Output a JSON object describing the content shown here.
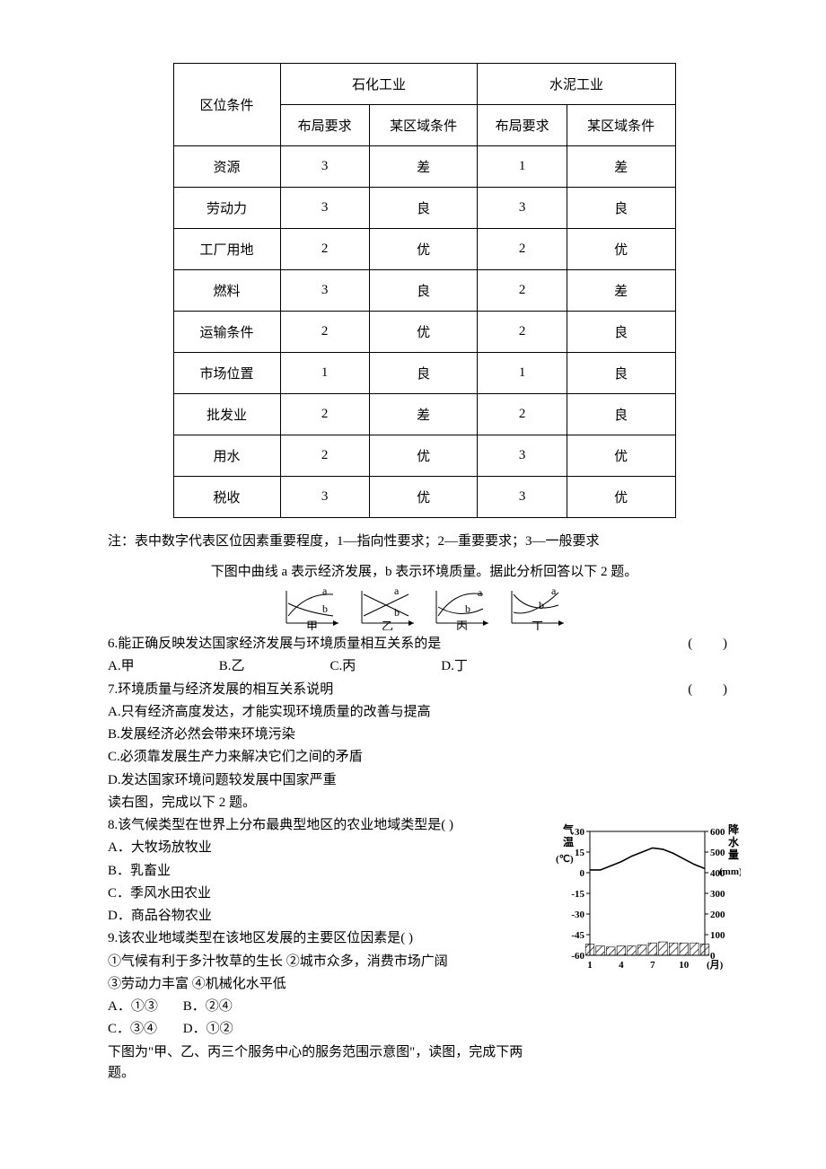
{
  "table": {
    "header": {
      "row_head": "区位条件",
      "group1": "石化工业",
      "group2": "水泥工业",
      "sub1": "布局要求",
      "sub2": "某区域条件",
      "sub3": "布局要求",
      "sub4": "某区域条件"
    },
    "rows": [
      {
        "label": "资源",
        "c1": "3",
        "c2": "差",
        "c3": "1",
        "c4": "差"
      },
      {
        "label": "劳动力",
        "c1": "3",
        "c2": "良",
        "c3": "3",
        "c4": "良"
      },
      {
        "label": "工厂用地",
        "c1": "2",
        "c2": "优",
        "c3": "2",
        "c4": "优"
      },
      {
        "label": "燃料",
        "c1": "3",
        "c2": "良",
        "c3": "2",
        "c4": "差"
      },
      {
        "label": "运输条件",
        "c1": "2",
        "c2": "优",
        "c3": "2",
        "c4": "良"
      },
      {
        "label": "市场位置",
        "c1": "1",
        "c2": "良",
        "c3": "1",
        "c4": "良"
      },
      {
        "label": "批发业",
        "c1": "2",
        "c2": "差",
        "c3": "2",
        "c4": "良"
      },
      {
        "label": "用水",
        "c1": "2",
        "c2": "优",
        "c3": "3",
        "c4": "优"
      },
      {
        "label": "税收",
        "c1": "3",
        "c2": "优",
        "c3": "3",
        "c4": "优"
      }
    ],
    "note": "注：表中数字代表区位因素重要程度，1—指向性要求；2—重要要求；3—一般要求"
  },
  "mini_chart_intro": "下图中曲线 a 表示经济发展，b 表示环境质量。据此分析回答以下 2 题。",
  "mini_labels": {
    "a": "a",
    "b": "b",
    "jia": "甲",
    "yi": "乙",
    "bing": "丙",
    "ding": "丁"
  },
  "q6": {
    "stem": "6.能正确反映发达国家经济发展与环境质量相互关系的是",
    "A": "A.甲",
    "B": "B.乙",
    "C": "C.丙",
    "D": "D.丁"
  },
  "q7": {
    "stem": "7.环境质量与经济发展的相互关系说明",
    "A": "A.只有经济高度发达，才能实现环境质量的改善与提高",
    "B": "B.发展经济必然会带来环境污染",
    "C": "C.必须靠发展生产力来解决它们之间的矛盾",
    "D": "D.发达国家环境问题较发展中国家严重"
  },
  "q8_intro": "读右图，完成以下 2 题。",
  "q8": {
    "stem": "8.该气候类型在世界上分布最典型地区的农业地域类型是(     )",
    "A": "A．大牧场放牧业",
    "B": "B．乳畜业",
    "C": "C．季风水田农业",
    "D": "D．商品谷物农业"
  },
  "q9": {
    "stem": "9.该农业地域类型在该地区发展的主要区位因素是(     )",
    "conds": "①气候有利于多汁牧草的生长  ②城市众多，消费市场广阔",
    "conds2": "③劳动力丰富  ④机械化水平低",
    "A": "A．①③",
    "B": "B．②④",
    "C": "C．③④",
    "D": "D．①②"
  },
  "bottom": "下图为\"甲、乙、丙三个服务中心的服务范围示意图\"，读图，完成下两题。",
  "climate": {
    "yl_label": "气温",
    "yl_unit": "(℃)",
    "yr_label": "降水量",
    "yr_unit": "(mm)",
    "yl_ticks": [
      "30",
      "15",
      "0",
      "-15",
      "-30",
      "-45",
      "-60"
    ],
    "yr_ticks": [
      "600",
      "500",
      "400",
      "300",
      "200",
      "100",
      "0"
    ],
    "x_ticks": [
      "1",
      "4",
      "7",
      "10"
    ],
    "x_unit": "(月)",
    "temp_points": [
      {
        "m": 1,
        "v": 2
      },
      {
        "m": 2,
        "v": 2
      },
      {
        "m": 3,
        "v": 5
      },
      {
        "m": 4,
        "v": 8
      },
      {
        "m": 5,
        "v": 12
      },
      {
        "m": 6,
        "v": 15
      },
      {
        "m": 7,
        "v": 18
      },
      {
        "m": 8,
        "v": 17
      },
      {
        "m": 9,
        "v": 14
      },
      {
        "m": 10,
        "v": 10
      },
      {
        "m": 11,
        "v": 6
      },
      {
        "m": 12,
        "v": 3
      }
    ],
    "precip": [
      55,
      45,
      40,
      45,
      45,
      50,
      60,
      65,
      60,
      60,
      60,
      55
    ]
  },
  "paren": "(    )"
}
